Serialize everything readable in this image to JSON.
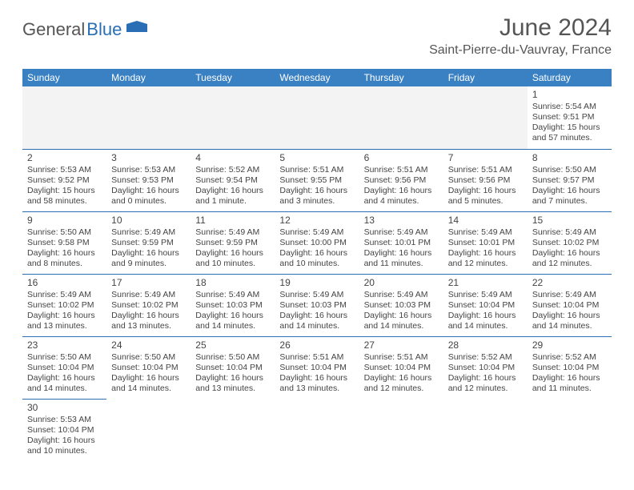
{
  "logo": {
    "dark": "General",
    "blue": "Blue"
  },
  "title": "June 2024",
  "location": "Saint-Pierre-du-Vauvray, France",
  "colors": {
    "header_bg": "#3a81c4",
    "header_text": "#ffffff",
    "border": "#2a6fb5",
    "text": "#444444",
    "logo_dark": "#555555",
    "logo_blue": "#2a6fb5",
    "empty_bg": "#f3f3f3"
  },
  "dayHeaders": [
    "Sunday",
    "Monday",
    "Tuesday",
    "Wednesday",
    "Thursday",
    "Friday",
    "Saturday"
  ],
  "weeks": [
    [
      null,
      null,
      null,
      null,
      null,
      null,
      {
        "n": "1",
        "sr": "Sunrise: 5:54 AM",
        "ss": "Sunset: 9:51 PM",
        "d1": "Daylight: 15 hours",
        "d2": "and 57 minutes."
      }
    ],
    [
      {
        "n": "2",
        "sr": "Sunrise: 5:53 AM",
        "ss": "Sunset: 9:52 PM",
        "d1": "Daylight: 15 hours",
        "d2": "and 58 minutes."
      },
      {
        "n": "3",
        "sr": "Sunrise: 5:53 AM",
        "ss": "Sunset: 9:53 PM",
        "d1": "Daylight: 16 hours",
        "d2": "and 0 minutes."
      },
      {
        "n": "4",
        "sr": "Sunrise: 5:52 AM",
        "ss": "Sunset: 9:54 PM",
        "d1": "Daylight: 16 hours",
        "d2": "and 1 minute."
      },
      {
        "n": "5",
        "sr": "Sunrise: 5:51 AM",
        "ss": "Sunset: 9:55 PM",
        "d1": "Daylight: 16 hours",
        "d2": "and 3 minutes."
      },
      {
        "n": "6",
        "sr": "Sunrise: 5:51 AM",
        "ss": "Sunset: 9:56 PM",
        "d1": "Daylight: 16 hours",
        "d2": "and 4 minutes."
      },
      {
        "n": "7",
        "sr": "Sunrise: 5:51 AM",
        "ss": "Sunset: 9:56 PM",
        "d1": "Daylight: 16 hours",
        "d2": "and 5 minutes."
      },
      {
        "n": "8",
        "sr": "Sunrise: 5:50 AM",
        "ss": "Sunset: 9:57 PM",
        "d1": "Daylight: 16 hours",
        "d2": "and 7 minutes."
      }
    ],
    [
      {
        "n": "9",
        "sr": "Sunrise: 5:50 AM",
        "ss": "Sunset: 9:58 PM",
        "d1": "Daylight: 16 hours",
        "d2": "and 8 minutes."
      },
      {
        "n": "10",
        "sr": "Sunrise: 5:49 AM",
        "ss": "Sunset: 9:59 PM",
        "d1": "Daylight: 16 hours",
        "d2": "and 9 minutes."
      },
      {
        "n": "11",
        "sr": "Sunrise: 5:49 AM",
        "ss": "Sunset: 9:59 PM",
        "d1": "Daylight: 16 hours",
        "d2": "and 10 minutes."
      },
      {
        "n": "12",
        "sr": "Sunrise: 5:49 AM",
        "ss": "Sunset: 10:00 PM",
        "d1": "Daylight: 16 hours",
        "d2": "and 10 minutes."
      },
      {
        "n": "13",
        "sr": "Sunrise: 5:49 AM",
        "ss": "Sunset: 10:01 PM",
        "d1": "Daylight: 16 hours",
        "d2": "and 11 minutes."
      },
      {
        "n": "14",
        "sr": "Sunrise: 5:49 AM",
        "ss": "Sunset: 10:01 PM",
        "d1": "Daylight: 16 hours",
        "d2": "and 12 minutes."
      },
      {
        "n": "15",
        "sr": "Sunrise: 5:49 AM",
        "ss": "Sunset: 10:02 PM",
        "d1": "Daylight: 16 hours",
        "d2": "and 12 minutes."
      }
    ],
    [
      {
        "n": "16",
        "sr": "Sunrise: 5:49 AM",
        "ss": "Sunset: 10:02 PM",
        "d1": "Daylight: 16 hours",
        "d2": "and 13 minutes."
      },
      {
        "n": "17",
        "sr": "Sunrise: 5:49 AM",
        "ss": "Sunset: 10:02 PM",
        "d1": "Daylight: 16 hours",
        "d2": "and 13 minutes."
      },
      {
        "n": "18",
        "sr": "Sunrise: 5:49 AM",
        "ss": "Sunset: 10:03 PM",
        "d1": "Daylight: 16 hours",
        "d2": "and 14 minutes."
      },
      {
        "n": "19",
        "sr": "Sunrise: 5:49 AM",
        "ss": "Sunset: 10:03 PM",
        "d1": "Daylight: 16 hours",
        "d2": "and 14 minutes."
      },
      {
        "n": "20",
        "sr": "Sunrise: 5:49 AM",
        "ss": "Sunset: 10:03 PM",
        "d1": "Daylight: 16 hours",
        "d2": "and 14 minutes."
      },
      {
        "n": "21",
        "sr": "Sunrise: 5:49 AM",
        "ss": "Sunset: 10:04 PM",
        "d1": "Daylight: 16 hours",
        "d2": "and 14 minutes."
      },
      {
        "n": "22",
        "sr": "Sunrise: 5:49 AM",
        "ss": "Sunset: 10:04 PM",
        "d1": "Daylight: 16 hours",
        "d2": "and 14 minutes."
      }
    ],
    [
      {
        "n": "23",
        "sr": "Sunrise: 5:50 AM",
        "ss": "Sunset: 10:04 PM",
        "d1": "Daylight: 16 hours",
        "d2": "and 14 minutes."
      },
      {
        "n": "24",
        "sr": "Sunrise: 5:50 AM",
        "ss": "Sunset: 10:04 PM",
        "d1": "Daylight: 16 hours",
        "d2": "and 14 minutes."
      },
      {
        "n": "25",
        "sr": "Sunrise: 5:50 AM",
        "ss": "Sunset: 10:04 PM",
        "d1": "Daylight: 16 hours",
        "d2": "and 13 minutes."
      },
      {
        "n": "26",
        "sr": "Sunrise: 5:51 AM",
        "ss": "Sunset: 10:04 PM",
        "d1": "Daylight: 16 hours",
        "d2": "and 13 minutes."
      },
      {
        "n": "27",
        "sr": "Sunrise: 5:51 AM",
        "ss": "Sunset: 10:04 PM",
        "d1": "Daylight: 16 hours",
        "d2": "and 12 minutes."
      },
      {
        "n": "28",
        "sr": "Sunrise: 5:52 AM",
        "ss": "Sunset: 10:04 PM",
        "d1": "Daylight: 16 hours",
        "d2": "and 12 minutes."
      },
      {
        "n": "29",
        "sr": "Sunrise: 5:52 AM",
        "ss": "Sunset: 10:04 PM",
        "d1": "Daylight: 16 hours",
        "d2": "and 11 minutes."
      }
    ],
    [
      {
        "n": "30",
        "sr": "Sunrise: 5:53 AM",
        "ss": "Sunset: 10:04 PM",
        "d1": "Daylight: 16 hours",
        "d2": "and 10 minutes."
      },
      null,
      null,
      null,
      null,
      null,
      null
    ]
  ]
}
